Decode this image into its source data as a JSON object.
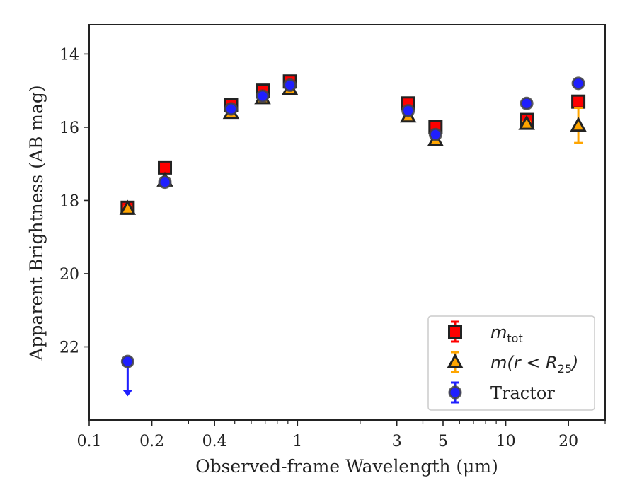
{
  "chart_data": {
    "type": "scatter",
    "xlabel": "Observed-frame Wavelength (μm)",
    "ylabel": "Apparent Brightness (AB mag)",
    "xscale": "log",
    "xlim": [
      0.1,
      30
    ],
    "ylim": [
      24.0,
      13.2
    ],
    "y_inverted": true,
    "x_ticks": [
      {
        "value": 0.1,
        "label": "0.1"
      },
      {
        "value": 0.2,
        "label": "0.2"
      },
      {
        "value": 0.4,
        "label": "0.4"
      },
      {
        "value": 1,
        "label": "1"
      },
      {
        "value": 3,
        "label": "3"
      },
      {
        "value": 5,
        "label": "5"
      },
      {
        "value": 10,
        "label": "10"
      },
      {
        "value": 20,
        "label": "20"
      }
    ],
    "y_ticks": [
      {
        "value": 14,
        "label": "14"
      },
      {
        "value": 16,
        "label": "16"
      },
      {
        "value": 18,
        "label": "18"
      },
      {
        "value": 20,
        "label": "20"
      },
      {
        "value": 22,
        "label": "22"
      }
    ],
    "grid": false,
    "legend": {
      "position": "lower-right"
    },
    "series": [
      {
        "name": "m_tot",
        "legend_label": {
          "base": "m",
          "sub": "tot"
        },
        "marker": "square",
        "color": "#ff0000",
        "edge_color": "#222222",
        "errbar_color": "#ff0000",
        "points": [
          {
            "x": 0.153,
            "y": 18.2,
            "err": 0.05
          },
          {
            "x": 0.231,
            "y": 17.1,
            "err": 0.05
          },
          {
            "x": 0.48,
            "y": 15.4,
            "err": 0.05
          },
          {
            "x": 0.68,
            "y": 15.0,
            "err": 0.05
          },
          {
            "x": 0.92,
            "y": 14.75,
            "err": 0.05
          },
          {
            "x": 3.4,
            "y": 15.35,
            "err": 0.05
          },
          {
            "x": 4.6,
            "y": 16.0,
            "err": 0.05
          },
          {
            "x": 12.6,
            "y": 15.8,
            "err": 0.05
          },
          {
            "x": 22.3,
            "y": 15.3,
            "err": 0.05
          }
        ]
      },
      {
        "name": "m(r < R_25)",
        "legend_label": {
          "base": "m(r < R",
          "sub": "25",
          "tail": ")"
        },
        "marker": "triangle",
        "color": "#ffa500",
        "edge_color": "#222222",
        "errbar_color": "#ffa500",
        "points": [
          {
            "x": 0.153,
            "y": 18.22,
            "err": 0.05
          },
          {
            "x": 0.231,
            "y": 17.45,
            "err": 0.05
          },
          {
            "x": 0.48,
            "y": 15.6,
            "err": 0.05
          },
          {
            "x": 0.68,
            "y": 15.2,
            "err": 0.05
          },
          {
            "x": 0.92,
            "y": 14.95,
            "err": 0.05
          },
          {
            "x": 3.4,
            "y": 15.7,
            "err": 0.05
          },
          {
            "x": 4.6,
            "y": 16.35,
            "err": 0.05
          },
          {
            "x": 12.6,
            "y": 15.9,
            "err": 0.05
          },
          {
            "x": 22.3,
            "y": 15.95,
            "err": 0.48
          }
        ]
      },
      {
        "name": "Tractor",
        "legend_label": {
          "base": "Tractor"
        },
        "marker": "circle",
        "color": "#1f1fff",
        "edge_color": "#444444",
        "errbar_color": "#1f1fff",
        "points": [
          {
            "x": 0.153,
            "y": 22.4,
            "err": 0.0,
            "upper_limit": true,
            "arrow_to": 23.35
          },
          {
            "x": 0.231,
            "y": 17.5,
            "err": 0.05
          },
          {
            "x": 0.48,
            "y": 15.5,
            "err": 0.05
          },
          {
            "x": 0.68,
            "y": 15.15,
            "err": 0.05
          },
          {
            "x": 0.92,
            "y": 14.85,
            "err": 0.05
          },
          {
            "x": 3.4,
            "y": 15.55,
            "err": 0.05
          },
          {
            "x": 4.6,
            "y": 16.2,
            "err": 0.05
          },
          {
            "x": 12.6,
            "y": 15.35,
            "err": 0.05
          },
          {
            "x": 22.3,
            "y": 14.8,
            "err": 0.05
          }
        ]
      }
    ]
  }
}
